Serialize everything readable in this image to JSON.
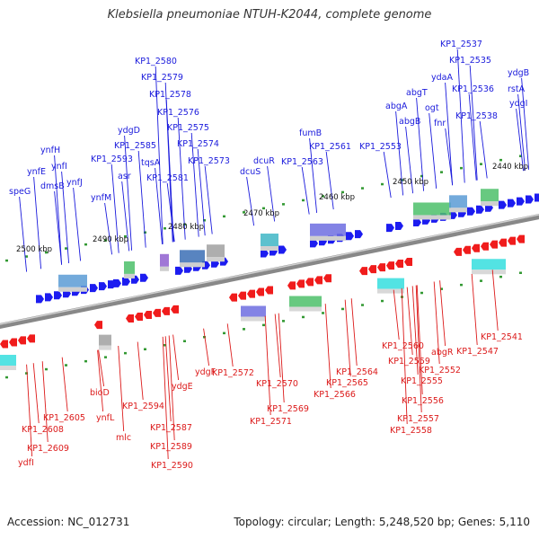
{
  "title": "Klebsiella pneumoniae NTUH-K2044, complete genome",
  "footer": {
    "accession_text": "Accession: NC_012731",
    "stats_text": "Topology: circular; Length: 5,248,520 bp; Genes: 5,110"
  },
  "colors": {
    "forward_label": "#1a1adc",
    "reverse_label": "#dc1a1a",
    "forward_gene": "#1c1cf0",
    "reverse_gene": "#f01c1c",
    "backbone": "#808080",
    "tick": "#339933"
  },
  "scale_labels": [
    "2440 kbp",
    "2450 kbp",
    "2460 kbp",
    "2470 kbp",
    "2480 kbp",
    "2490 kbp",
    "2500 kbp"
  ],
  "forward_genes": [
    "KP1_2537",
    "KP1_2535",
    "ydgB",
    "KP1_2536",
    "rstA",
    "ydaA",
    "ydgI",
    "abgT",
    "KP1_2538",
    "ogt",
    "abgA",
    "fnr",
    "abgB",
    "fumB",
    "KP1_2553",
    "KP1_2561",
    "KP1_2563",
    "dcuR",
    "dcuS",
    "KP1_2580",
    "KP1_2579",
    "KP1_2578",
    "KP1_2576",
    "KP1_2575",
    "ydgD",
    "KP1_2574",
    "KP1_2585",
    "KP1_2573",
    "KP1_2593",
    "tqsA",
    "asr",
    "KP1_2581",
    "ynfH",
    "ynfE",
    "ynfI",
    "dmsB",
    "ynfJ",
    "speG",
    "ynfM"
  ],
  "reverse_genes": [
    "KP1_2541",
    "KP1_2547",
    "abgR",
    "KP1_2560",
    "KP1_2552",
    "KP1_2559",
    "KP1_2555",
    "KP1_2556",
    "KP1_2557",
    "KP1_2558",
    "KP1_2564",
    "KP1_2565",
    "KP1_2566",
    "KP1_2572",
    "KP1_2570",
    "KP1_2569",
    "KP1_2571",
    "ydgF",
    "ydgE",
    "KP1_2587",
    "KP1_2589",
    "KP1_2590",
    "KP1_2594",
    "bioD",
    "ynfL",
    "mlc",
    "KP1_2605",
    "KP1_2608",
    "KP1_2609",
    "ydfI"
  ]
}
